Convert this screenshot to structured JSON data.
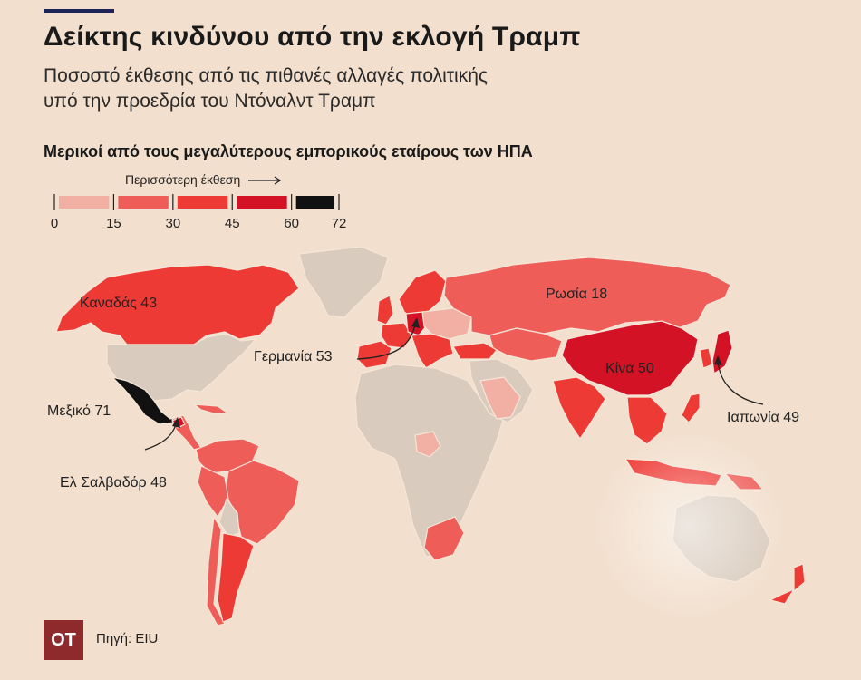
{
  "header": {
    "title": "Δείκτης κινδύνου από την εκλογή Τραμπ",
    "subtitle_line1": "Ποσοστό έκθεσης από τις πιθανές αλλαγές πολιτικής",
    "subtitle_line2": "υπό την προεδρία του Ντόναλντ Τραμπ",
    "section": "Μερικοί από τους μεγαλύτερους εμπορικούς εταίρους των ΗΠΑ"
  },
  "legend": {
    "caption": "Περισσότερη έκθεση",
    "ticks": [
      "0",
      "15",
      "30",
      "45",
      "60",
      "72"
    ],
    "bins": [
      {
        "from": 0,
        "to": 15,
        "color": "#f2b0a4"
      },
      {
        "from": 15,
        "to": 30,
        "color": "#ee5d58"
      },
      {
        "from": 30,
        "to": 45,
        "color": "#ee3a35"
      },
      {
        "from": 45,
        "to": 60,
        "color": "#d31226"
      },
      {
        "from": 60,
        "to": 72,
        "color": "#111111"
      }
    ]
  },
  "colors": {
    "background": "#f2dfcd",
    "no_data": "#d9cbbd",
    "border": "#f5e6d8",
    "logo": "#8e2a2c",
    "title_rule": "#1f2458"
  },
  "countries": {
    "canada": {
      "label": "Καναδάς 43",
      "value": 43
    },
    "russia": {
      "label": "Ρωσία 18",
      "value": 18
    },
    "germany": {
      "label": "Γερμανία 53",
      "value": 53
    },
    "china": {
      "label": "Κίνα 50",
      "value": 50
    },
    "japan": {
      "label": "Ιαπωνία 49",
      "value": 49
    },
    "mexico": {
      "label": "Μεξικό 71",
      "value": 71
    },
    "el_salvador": {
      "label": "Ελ Σαλβαδόρ 48",
      "value": 48
    }
  },
  "footer": {
    "logo_text": "OT",
    "source": "Πηγή: EIU"
  }
}
